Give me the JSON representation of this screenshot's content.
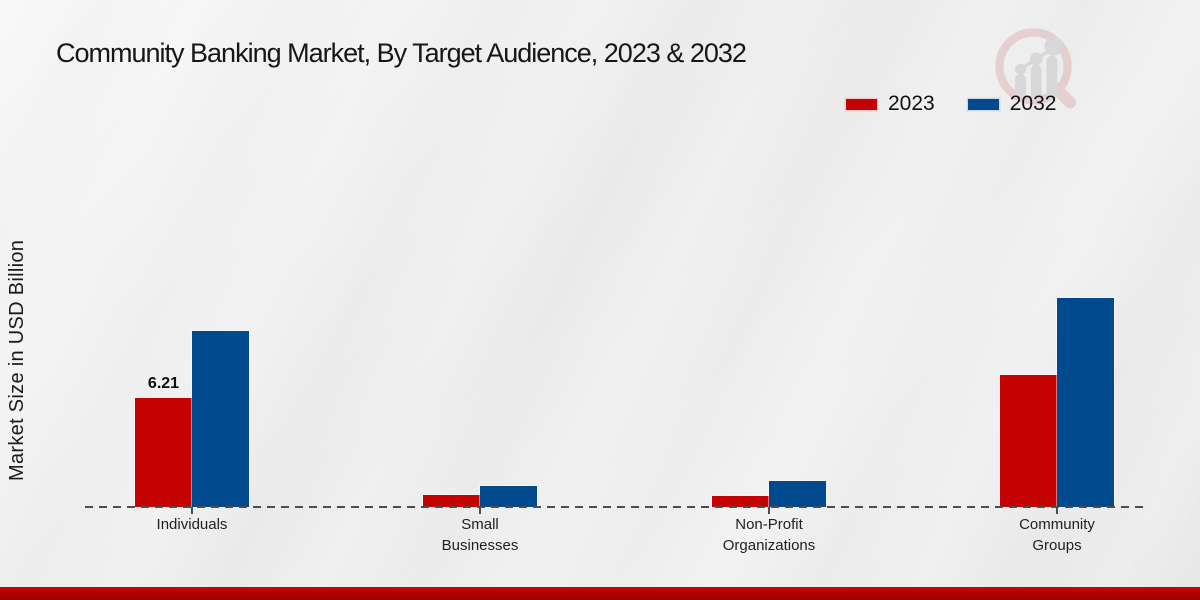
{
  "title": "Community Banking Market, By Target Audience, 2023 & 2032",
  "ylabel": "Market Size in USD Billion",
  "watermark_icon": "magnifier-bar-chart-logo",
  "colors": {
    "series_2023": "#c40202",
    "series_2032": "#004a8d",
    "footer_accent": "#b00000",
    "baseline": "#4d4d4d",
    "background": "#ececec"
  },
  "chart_data": {
    "type": "bar",
    "title": "Community Banking Market, By Target Audience, 2023 & 2032",
    "xlabel": "",
    "ylabel": "Market Size in USD Billion",
    "categories": [
      "Individuals",
      "Small Businesses",
      "Non-Profit Organizations",
      "Community Groups"
    ],
    "series": [
      {
        "name": "2023",
        "color": "#c40202",
        "values": [
          6.21,
          0.7,
          0.6,
          7.5
        ]
      },
      {
        "name": "2032",
        "color": "#004a8d",
        "values": [
          10.0,
          1.2,
          1.5,
          11.9
        ]
      }
    ],
    "ylim": [
      0,
      12.5
    ],
    "grid": false,
    "y_axis_ticks_visible": false,
    "legend_position": "top-right",
    "baseline_style": "dashed",
    "annotations": [
      {
        "series_index": 0,
        "category_index": 0,
        "text": "6.21"
      }
    ]
  }
}
